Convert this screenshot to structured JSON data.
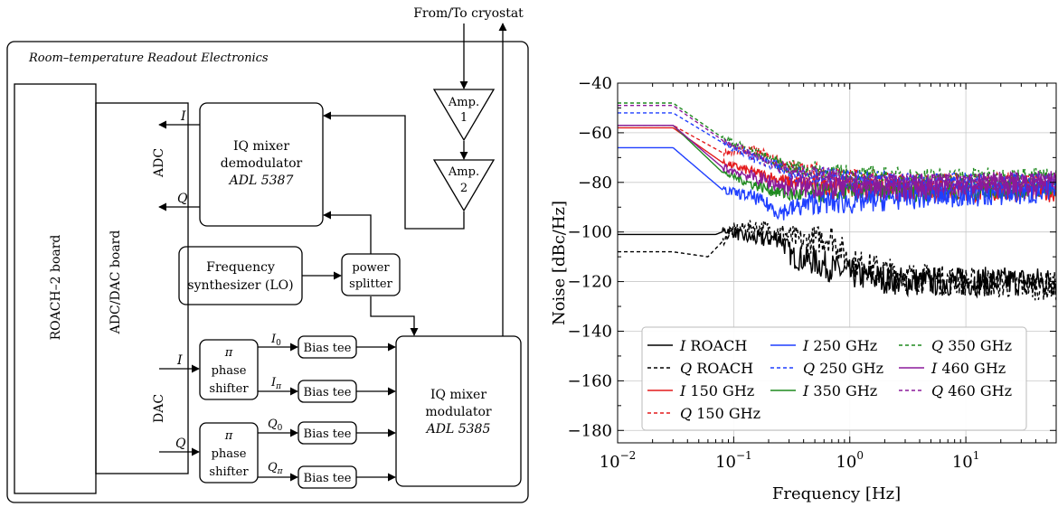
{
  "diagram": {
    "cryostat_label": "From/To cryostat",
    "panel_title": "Room–temperature Readout Electronics",
    "roach_board": "ROACH–2 board",
    "adc_dac_board": "ADC/DAC board",
    "adc_label": "ADC",
    "dac_label": "DAC",
    "demodulator": {
      "line1": "IQ mixer",
      "line2": "demodulator",
      "part": "ADL 5387"
    },
    "modulator": {
      "line1": "IQ mixer",
      "line2": "modulator",
      "part": "ADL 5385"
    },
    "amp1": {
      "line1": "Amp.",
      "line2": "1"
    },
    "amp2": {
      "line1": "Amp.",
      "line2": "2"
    },
    "synth": {
      "line1": "Frequency",
      "line2": "synthesizer (LO)"
    },
    "splitter": {
      "line1": "power",
      "line2": "splitter"
    },
    "phase_shifter": {
      "line1": "π",
      "line2": "phase",
      "line3": "shifter"
    },
    "bias_tee": "Bias tee",
    "signals": {
      "I": "I",
      "Q": "Q",
      "I0": "I",
      "I0_sub": "0",
      "Ipi": "I",
      "Ipi_sub": "π",
      "Q0": "Q",
      "Q0_sub": "0",
      "Qpi": "Q",
      "Qpi_sub": "π"
    }
  },
  "chart_data": {
    "type": "line",
    "xlabel": "Frequency [Hz]",
    "ylabel": "Noise [dBc/Hz]",
    "xscale": "log",
    "xlim": [
      0.01,
      60
    ],
    "ylim": [
      -185,
      -40
    ],
    "xticks": [
      {
        "v": 0.01,
        "base": "10",
        "exp": "−2"
      },
      {
        "v": 0.1,
        "base": "10",
        "exp": "−1"
      },
      {
        "v": 1,
        "base": "10",
        "exp": "0"
      },
      {
        "v": 10,
        "base": "10",
        "exp": "1"
      }
    ],
    "yticks": [
      -40,
      -60,
      -80,
      -100,
      -120,
      -140,
      -160,
      -180
    ],
    "ytick_labels": [
      "−40",
      "−60",
      "−80",
      "−100",
      "−120",
      "−140",
      "−160",
      "−180"
    ],
    "grid": true,
    "legend_position": "bottom-center",
    "series": [
      {
        "name": "I ROACH",
        "sym": "I",
        "rest": " ROACH",
        "color": "#000000",
        "dash": false,
        "base": [
          [
            0.01,
            -101
          ],
          [
            0.03,
            -101
          ],
          [
            0.07,
            -101
          ],
          [
            0.09,
            -99
          ],
          [
            0.12,
            -102
          ],
          [
            0.18,
            -103
          ],
          [
            0.25,
            -102
          ],
          [
            0.32,
            -110
          ],
          [
            0.5,
            -112
          ],
          [
            1,
            -117
          ],
          [
            3,
            -120
          ],
          [
            10,
            -120
          ],
          [
            60,
            -120
          ]
        ],
        "amp": 6
      },
      {
        "name": "Q ROACH",
        "sym": "Q",
        "rest": " ROACH",
        "color": "#000000",
        "dash": true,
        "base": [
          [
            0.01,
            -108
          ],
          [
            0.03,
            -108
          ],
          [
            0.06,
            -110
          ],
          [
            0.1,
            -99
          ],
          [
            0.15,
            -98
          ],
          [
            0.25,
            -100
          ],
          [
            0.4,
            -104
          ],
          [
            0.7,
            -102
          ],
          [
            1,
            -112
          ],
          [
            3,
            -118
          ],
          [
            10,
            -120
          ],
          [
            60,
            -122
          ]
        ],
        "amp": 6
      },
      {
        "name": "I 150 GHz",
        "sym": "I",
        "rest": " 150 GHz",
        "color": "#e41a1c",
        "dash": false,
        "base": [
          [
            0.01,
            -58
          ],
          [
            0.03,
            -58
          ],
          [
            0.08,
            -72
          ],
          [
            0.15,
            -76
          ],
          [
            0.3,
            -80
          ],
          [
            1,
            -82
          ],
          [
            3,
            -83
          ],
          [
            10,
            -84
          ],
          [
            60,
            -84
          ]
        ],
        "amp": 4
      },
      {
        "name": "Q 150 GHz",
        "sym": "Q",
        "rest": " 150 GHz",
        "color": "#e41a1c",
        "dash": true,
        "base": [
          [
            0.01,
            -57
          ],
          [
            0.03,
            -57
          ],
          [
            0.08,
            -68
          ],
          [
            0.15,
            -67
          ],
          [
            0.3,
            -74
          ],
          [
            1,
            -78
          ],
          [
            3,
            -80
          ],
          [
            10,
            -80
          ],
          [
            60,
            -80
          ]
        ],
        "amp": 4
      },
      {
        "name": "I 250 GHz",
        "sym": "I",
        "rest": " 250 GHz",
        "color": "#1f3fff",
        "dash": false,
        "base": [
          [
            0.01,
            -66
          ],
          [
            0.03,
            -66
          ],
          [
            0.08,
            -83
          ],
          [
            0.15,
            -86
          ],
          [
            0.25,
            -92
          ],
          [
            0.5,
            -88
          ],
          [
            1,
            -88
          ],
          [
            3,
            -86
          ],
          [
            10,
            -85
          ],
          [
            60,
            -84
          ]
        ],
        "amp": 5
      },
      {
        "name": "Q 250 GHz",
        "sym": "Q",
        "rest": " 250 GHz",
        "color": "#1f3fff",
        "dash": true,
        "base": [
          [
            0.01,
            -52
          ],
          [
            0.03,
            -52
          ],
          [
            0.08,
            -64
          ],
          [
            0.15,
            -70
          ],
          [
            0.3,
            -76
          ],
          [
            1,
            -79
          ],
          [
            3,
            -80
          ],
          [
            10,
            -80
          ],
          [
            60,
            -80
          ]
        ],
        "amp": 4
      },
      {
        "name": "I 350 GHz",
        "sym": "I",
        "rest": " 350 GHz",
        "color": "#1f8a1f",
        "dash": false,
        "base": [
          [
            0.01,
            -57
          ],
          [
            0.03,
            -57
          ],
          [
            0.08,
            -76
          ],
          [
            0.15,
            -81
          ],
          [
            0.3,
            -85
          ],
          [
            1,
            -84
          ],
          [
            3,
            -84
          ],
          [
            10,
            -83
          ],
          [
            60,
            -82
          ]
        ],
        "amp": 4
      },
      {
        "name": "Q 350 GHz",
        "sym": "Q",
        "rest": " 350 GHz",
        "color": "#1f8a1f",
        "dash": true,
        "base": [
          [
            0.01,
            -48
          ],
          [
            0.03,
            -48
          ],
          [
            0.08,
            -62
          ],
          [
            0.15,
            -68
          ],
          [
            0.3,
            -74
          ],
          [
            1,
            -77
          ],
          [
            3,
            -78
          ],
          [
            10,
            -78
          ],
          [
            60,
            -78
          ]
        ],
        "amp": 4
      },
      {
        "name": "I 460 GHz",
        "sym": "I",
        "rest": " 460 GHz",
        "color": "#8b1a9b",
        "dash": false,
        "base": [
          [
            0.01,
            -57
          ],
          [
            0.03,
            -57
          ],
          [
            0.08,
            -74
          ],
          [
            0.15,
            -78
          ],
          [
            0.3,
            -82
          ],
          [
            1,
            -82
          ],
          [
            3,
            -82
          ],
          [
            10,
            -81
          ],
          [
            60,
            -80
          ]
        ],
        "amp": 5
      },
      {
        "name": "Q 460 GHz",
        "sym": "Q",
        "rest": " 460 GHz",
        "color": "#8b1a9b",
        "dash": true,
        "base": [
          [
            0.01,
            -49
          ],
          [
            0.03,
            -49
          ],
          [
            0.08,
            -63
          ],
          [
            0.15,
            -69
          ],
          [
            0.3,
            -76
          ],
          [
            1,
            -79
          ],
          [
            3,
            -80
          ],
          [
            10,
            -80
          ],
          [
            60,
            -80
          ]
        ],
        "amp": 4
      }
    ]
  }
}
